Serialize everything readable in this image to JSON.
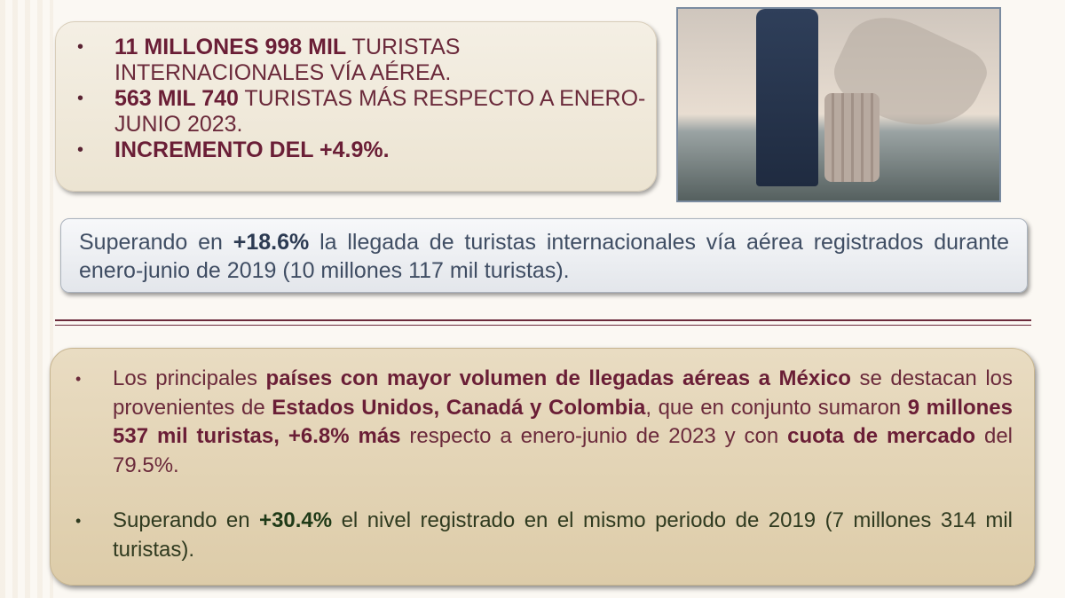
{
  "top_box": {
    "items": [
      {
        "bold": "11 MILLONES 998 MIL",
        "text": " TURISTAS INTERNACIONALES VÍA AÉREA."
      },
      {
        "bold": "563 MIL 740",
        "text": " TURISTAS MÁS RESPECTO A ENERO-JUNIO  2023."
      },
      {
        "bold": "INCREMENTO DEL +4.9%.",
        "text": ""
      }
    ]
  },
  "photo": {
    "description_icon": "traveler-with-suitcase-mexico-map-image"
  },
  "comparison_box": {
    "t1": "Superando en ",
    "b1": "+18.6%",
    "t2": " la llegada de turistas internacionales vía aérea registrados durante enero-junio de 2019 (10 millones 117 mil turistas)."
  },
  "bottom_box": {
    "item1": {
      "t1": "Los principales ",
      "b1": "países con mayor volumen de llegadas aéreas a México",
      "t2": " se destacan los provenientes de ",
      "b2": "Estados Unidos, Canadá y Colombia",
      "t3": ", que en conjunto sumaron ",
      "b3": "9 millones 537 mil turistas, +6.8% más",
      "t4": " respecto a enero-junio de 2023 y con ",
      "b4": "cuota de mercado",
      "t5": " del 79.5%."
    },
    "item2": {
      "t1": "Superando en ",
      "b1": "+30.4%",
      "t2": " el nivel registrado en el mismo periodo de 2019 (7 millones 314 mil turistas)."
    }
  },
  "colors": {
    "maroon": "#6b2a3b",
    "slate": "#3f4d63",
    "green": "#2f3a1f",
    "tan": "#e9dcc2"
  }
}
